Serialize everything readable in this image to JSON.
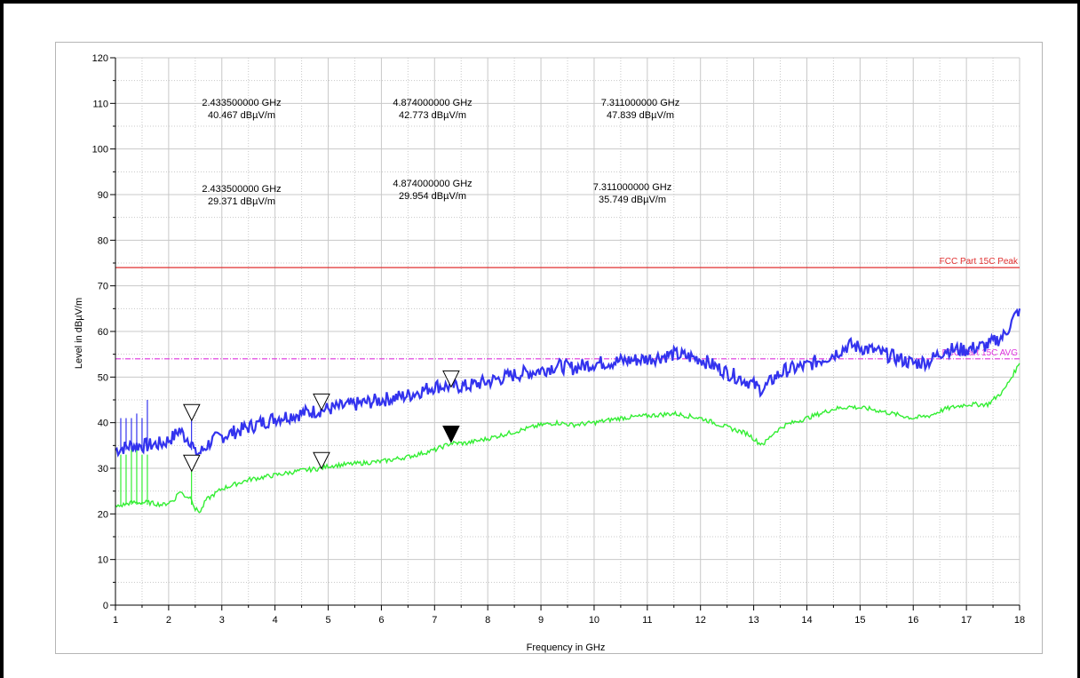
{
  "chart_data": {
    "type": "line",
    "title": "",
    "xlabel": "Frequency in GHz",
    "ylabel": "Level in dBµV/m",
    "xlim": [
      1,
      18
    ],
    "ylim": [
      0,
      120
    ],
    "x_ticks": [
      "1",
      "2",
      "3",
      "4",
      "5",
      "6",
      "7",
      "8",
      "9",
      "10",
      "11",
      "12",
      "13",
      "14",
      "15",
      "16",
      "17",
      "18"
    ],
    "y_ticks": [
      "0",
      "10",
      "20",
      "30",
      "40",
      "50",
      "60",
      "70",
      "80",
      "90",
      "100",
      "110",
      "120"
    ],
    "grid": true,
    "series": [
      {
        "color": "#3333ee",
        "x": [
          1.0,
          1.3,
          1.6,
          1.9,
          2.1,
          2.2,
          2.3,
          2.43,
          2.5,
          2.6,
          2.8,
          3.0,
          3.5,
          4.0,
          4.5,
          4.87,
          5.0,
          5.5,
          6.0,
          6.5,
          7.0,
          7.31,
          7.6,
          8.0,
          8.5,
          9.0,
          9.3,
          9.6,
          10.0,
          10.5,
          11.0,
          11.5,
          12.0,
          12.5,
          12.9,
          13.1,
          13.2,
          13.4,
          13.6,
          14.0,
          14.5,
          14.8,
          15.2,
          15.6,
          16.0,
          16.3,
          16.6,
          17.0,
          17.4,
          17.7,
          18.0
        ],
        "y": [
          34,
          35,
          35,
          35.5,
          37,
          38.5,
          37,
          36,
          33,
          33.5,
          36,
          37,
          39,
          41,
          42,
          42.8,
          43,
          44,
          45,
          46,
          48,
          48,
          48,
          49,
          50.5,
          51.5,
          52.5,
          52,
          53,
          53.5,
          54,
          55,
          54,
          51,
          49,
          47.5,
          47.5,
          50,
          51.5,
          52.5,
          55,
          57,
          56,
          54.5,
          53,
          53.5,
          56,
          56,
          57,
          59,
          65
        ]
      },
      {
        "color": "#33ee33",
        "x": [
          1.0,
          1.3,
          1.6,
          1.9,
          2.1,
          2.2,
          2.3,
          2.43,
          2.5,
          2.6,
          2.7,
          3.0,
          3.5,
          4.0,
          4.5,
          4.87,
          5.0,
          5.5,
          6.0,
          6.5,
          7.0,
          7.31,
          7.6,
          8.0,
          8.5,
          9.0,
          9.3,
          9.6,
          10.0,
          10.5,
          11.0,
          11.5,
          12.0,
          12.5,
          12.9,
          13.1,
          13.2,
          13.4,
          13.6,
          14.0,
          14.5,
          14.8,
          15.2,
          15.6,
          16.0,
          16.3,
          16.6,
          17.0,
          17.4,
          17.7,
          18.0
        ],
        "y": [
          21.5,
          22.5,
          22.5,
          22,
          23,
          25,
          24,
          23.5,
          21,
          20.5,
          23,
          25.5,
          27.5,
          28.5,
          29.5,
          30,
          30.5,
          31,
          31.5,
          32.5,
          34,
          35.5,
          35.5,
          36.5,
          38,
          39.5,
          40,
          39.5,
          40,
          41,
          41.5,
          42,
          41,
          39,
          37.5,
          35.5,
          35.5,
          38,
          39.5,
          41,
          43,
          43.5,
          43,
          42,
          41,
          41.5,
          43,
          44,
          44,
          47,
          53
        ]
      }
    ],
    "spikes": {
      "blue": [
        [
          1.1,
          41
        ],
        [
          1.2,
          41
        ],
        [
          1.3,
          41
        ],
        [
          1.4,
          42
        ],
        [
          1.5,
          41
        ],
        [
          1.6,
          45
        ],
        [
          2.43,
          40.5
        ]
      ],
      "green": [
        [
          1.1,
          33
        ],
        [
          1.2,
          33
        ],
        [
          1.3,
          34
        ],
        [
          1.4,
          34
        ],
        [
          1.5,
          33
        ],
        [
          1.6,
          33
        ],
        [
          2.43,
          29.4
        ]
      ]
    },
    "limit_lines": [
      {
        "label": "FCC Part 15C Peak",
        "value": 74,
        "color": "#e03030",
        "dashed": false
      },
      {
        "label": "FCC Part 15C AVG",
        "value": 54,
        "color": "#dd33dd",
        "dashed": true
      }
    ],
    "markers": [
      {
        "x": 2.4335,
        "y": 40.467,
        "filled": false
      },
      {
        "x": 4.874,
        "y": 42.773,
        "filled": false
      },
      {
        "x": 7.311,
        "y": 47.839,
        "filled": false
      },
      {
        "x": 2.4335,
        "y": 29.371,
        "filled": false
      },
      {
        "x": 4.874,
        "y": 29.954,
        "filled": false
      },
      {
        "x": 7.311,
        "y": 35.749,
        "filled": true
      }
    ],
    "annotations": [
      {
        "freq": "2.433500000 GHz",
        "level": "40.467 dBµV/m"
      },
      {
        "freq": "4.874000000 GHz",
        "level": "42.773 dBµV/m"
      },
      {
        "freq": "7.311000000 GHz",
        "level": "47.839 dBµV/m"
      },
      {
        "freq": "2.433500000 GHz",
        "level": "29.371 dBµV/m"
      },
      {
        "freq": "4.874000000 GHz",
        "level": "29.954 dBµV/m"
      },
      {
        "freq": "7.311000000 GHz",
        "level": "35.749 dBµV/m"
      }
    ]
  }
}
